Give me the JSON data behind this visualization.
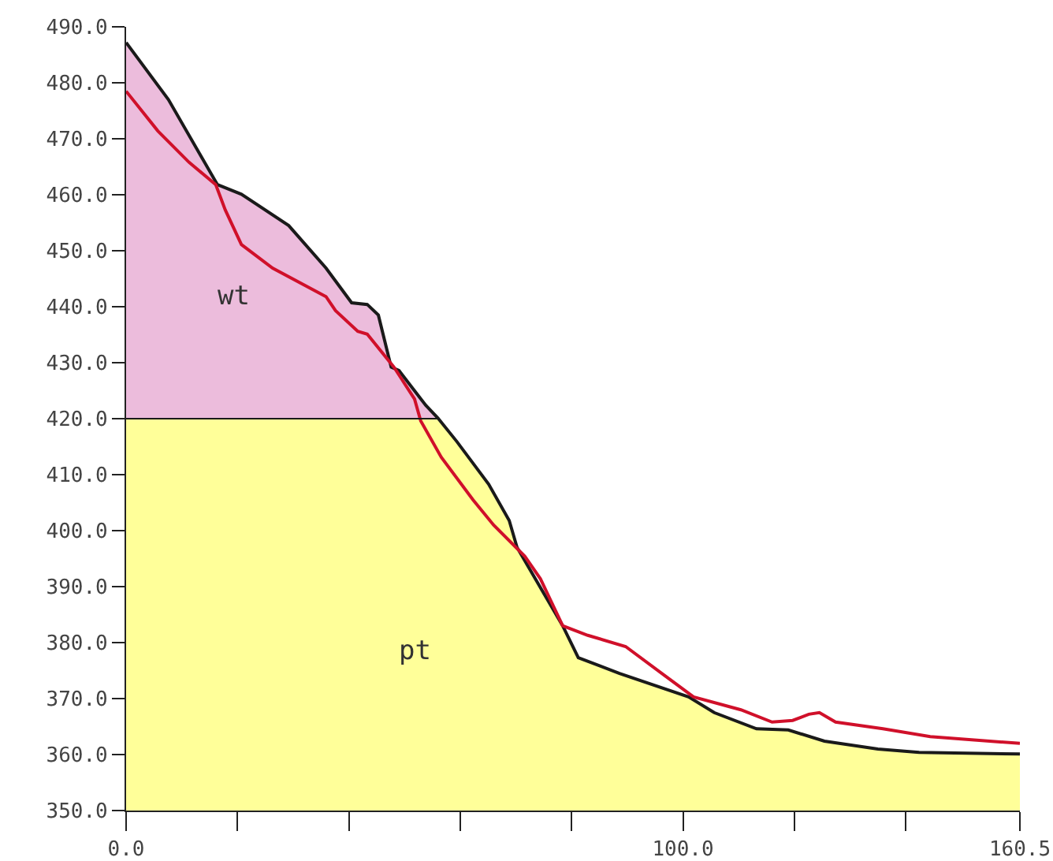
{
  "chart_data": {
    "type": "line",
    "xlim": [
      0,
      160.5
    ],
    "ylim": [
      350,
      490
    ],
    "xticks": [
      {
        "value": 0,
        "label": "0.0"
      },
      {
        "value": 20,
        "label": null
      },
      {
        "value": 40,
        "label": null
      },
      {
        "value": 60,
        "label": null
      },
      {
        "value": 80,
        "label": null
      },
      {
        "value": 100,
        "label": "100.0"
      },
      {
        "value": 120,
        "label": null
      },
      {
        "value": 140,
        "label": null
      },
      {
        "value": 160.5,
        "label": "160.5"
      }
    ],
    "yticks": [
      {
        "value": 350,
        "label": "350.0"
      },
      {
        "value": 360,
        "label": "360.0"
      },
      {
        "value": 370,
        "label": "370.0"
      },
      {
        "value": 380,
        "label": "380.0"
      },
      {
        "value": 390,
        "label": "390.0"
      },
      {
        "value": 400,
        "label": "400.0"
      },
      {
        "value": 410,
        "label": "410.0"
      },
      {
        "value": 420,
        "label": "420.0"
      },
      {
        "value": 430,
        "label": "430.0"
      },
      {
        "value": 440,
        "label": "440.0"
      },
      {
        "value": 450,
        "label": "450.0"
      },
      {
        "value": 460,
        "label": "460.0"
      },
      {
        "value": 470,
        "label": "470.0"
      },
      {
        "value": 480,
        "label": "480.0"
      },
      {
        "value": 490,
        "label": "490.0"
      }
    ],
    "grid": false,
    "legend": false,
    "marker": "none",
    "line_style": "solid",
    "series": [
      {
        "type": "area",
        "name": "wt",
        "color": "#ecbcdc",
        "x": [
          0,
          7.6,
          16.4,
          20.7,
          29.2,
          35.9,
          40.5,
          43.3,
          45.3,
          47.6,
          49,
          53.8,
          56
        ],
        "values": [
          487.2,
          477,
          461.8,
          460.1,
          454.5,
          446.9,
          440.7,
          440.4,
          438.5,
          429.2,
          428.6,
          422.4,
          420.1
        ]
      },
      {
        "type": "area",
        "name": "pt",
        "color": "#ffff99",
        "x": [
          0,
          56,
          59.4,
          65.1,
          68.8,
          70.2,
          78.4,
          81.2,
          88.6,
          101,
          105.6,
          113.2,
          118.9,
          125.4,
          135,
          142.4,
          160.5
        ],
        "values": [
          420,
          420,
          415.9,
          408.3,
          401.8,
          397,
          383,
          377.3,
          374.5,
          370.3,
          367.5,
          364.6,
          364.4,
          362.4,
          361,
          360.4,
          360.1
        ]
      },
      {
        "color": "#1a1a1a",
        "x": [
          0,
          7.6,
          16.4,
          20.7,
          29.2,
          35.9,
          40.5,
          43.3,
          45.3,
          47.6,
          49,
          53.8,
          56,
          59.4,
          65.1,
          68.8,
          70.2,
          78.4,
          81.2,
          88.6,
          101,
          105.6,
          113.2,
          118.9,
          125.4,
          135,
          142.4,
          160.5
        ],
        "values": [
          487.2,
          477,
          461.8,
          460.1,
          454.5,
          446.9,
          440.7,
          440.4,
          438.5,
          429.2,
          428.6,
          422.4,
          420.1,
          415.9,
          408.3,
          401.8,
          397,
          383,
          377.3,
          374.5,
          370.3,
          367.5,
          364.6,
          364.4,
          362.4,
          361,
          360.4,
          360.1
        ]
      },
      {
        "color": "#d0102a",
        "x": [
          0,
          5.7,
          11.3,
          16.1,
          17.8,
          20.7,
          26.3,
          35.9,
          37.6,
          41.6,
          43.3,
          48.1,
          51.8,
          52.9,
          56.6,
          62.3,
          66,
          71.6,
          74.4,
          78.4,
          82.9,
          89.7,
          96.2,
          101.9,
          110.4,
          116,
          119.7,
          122.6,
          124.5,
          127.4,
          135.9,
          144.4,
          160.5
        ],
        "values": [
          478.5,
          471.4,
          465.8,
          461.8,
          457.3,
          451.1,
          446.9,
          441.8,
          439.3,
          435.6,
          435.1,
          429.2,
          423.5,
          419.6,
          413.1,
          405.5,
          401,
          395.4,
          391.4,
          383,
          381.3,
          379.3,
          374.5,
          370.3,
          368,
          365.8,
          366.1,
          367.2,
          367.5,
          365.8,
          364.6,
          363.2,
          362
        ]
      }
    ]
  }
}
